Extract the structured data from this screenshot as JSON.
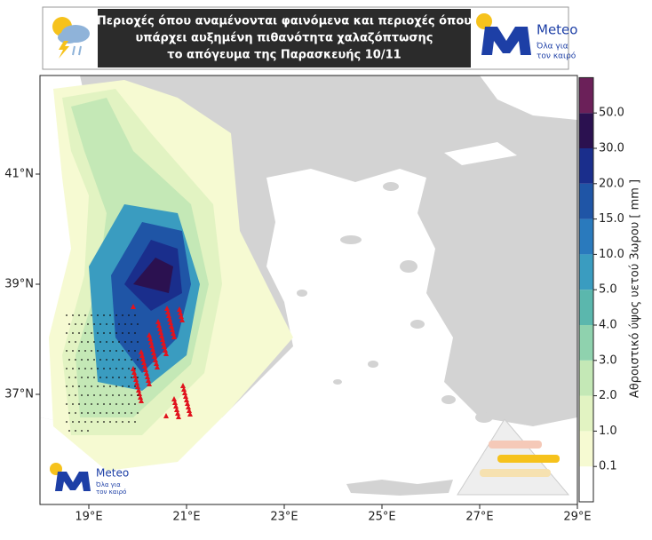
{
  "header": {
    "title_lines": [
      "Περιοχές όπου αναμένονται φαινόμενα και περιοχές όπου",
      "υπάρχει αυξημένη πιθανότητα χαλαζόπτωσης",
      "το απόγευμα της Παρασκευής 10/11"
    ]
  },
  "logo": {
    "name": "Meteo",
    "slogan_lines": [
      "Όλα για",
      "τον καιρό"
    ]
  },
  "map": {
    "lon_ticks": [
      {
        "value": 19,
        "label": "19°E"
      },
      {
        "value": 21,
        "label": "21°E"
      },
      {
        "value": 23,
        "label": "23°E"
      },
      {
        "value": 25,
        "label": "25°E"
      },
      {
        "value": 27,
        "label": "27°E"
      },
      {
        "value": 29,
        "label": "29°E"
      }
    ],
    "lat_ticks": [
      {
        "value": 37,
        "label": "37°N"
      },
      {
        "value": 39,
        "label": "39°N"
      },
      {
        "value": 41,
        "label": "41°N"
      }
    ]
  },
  "colorbar": {
    "label": "Αθροιστικό ύψος υετού 3ωρου [ mm ]",
    "ticks": [
      0.1,
      {
        "value": 1,
        "label": "1.0"
      },
      {
        "value": 2,
        "label": "2.0"
      },
      {
        "value": 3,
        "label": "3.0"
      },
      {
        "value": 4,
        "label": "4.0"
      },
      {
        "value": 5,
        "label": "5.0"
      },
      {
        "value": 10,
        "label": "10.0"
      },
      {
        "value": 15,
        "label": "15.0"
      },
      {
        "value": 20,
        "label": "20.0"
      },
      {
        "value": 30,
        "label": "30.0"
      },
      {
        "value": 50,
        "label": "50.0"
      }
    ],
    "colors": [
      "#ffffff",
      "#f6fad2",
      "#e2f3c2",
      "#c4e8b6",
      "#8fd2ae",
      "#5bb7ad",
      "#3a9cc0",
      "#2a7abd",
      "#1f55a6",
      "#1a2e8c",
      "#2b1150",
      "#6b2059"
    ]
  }
}
